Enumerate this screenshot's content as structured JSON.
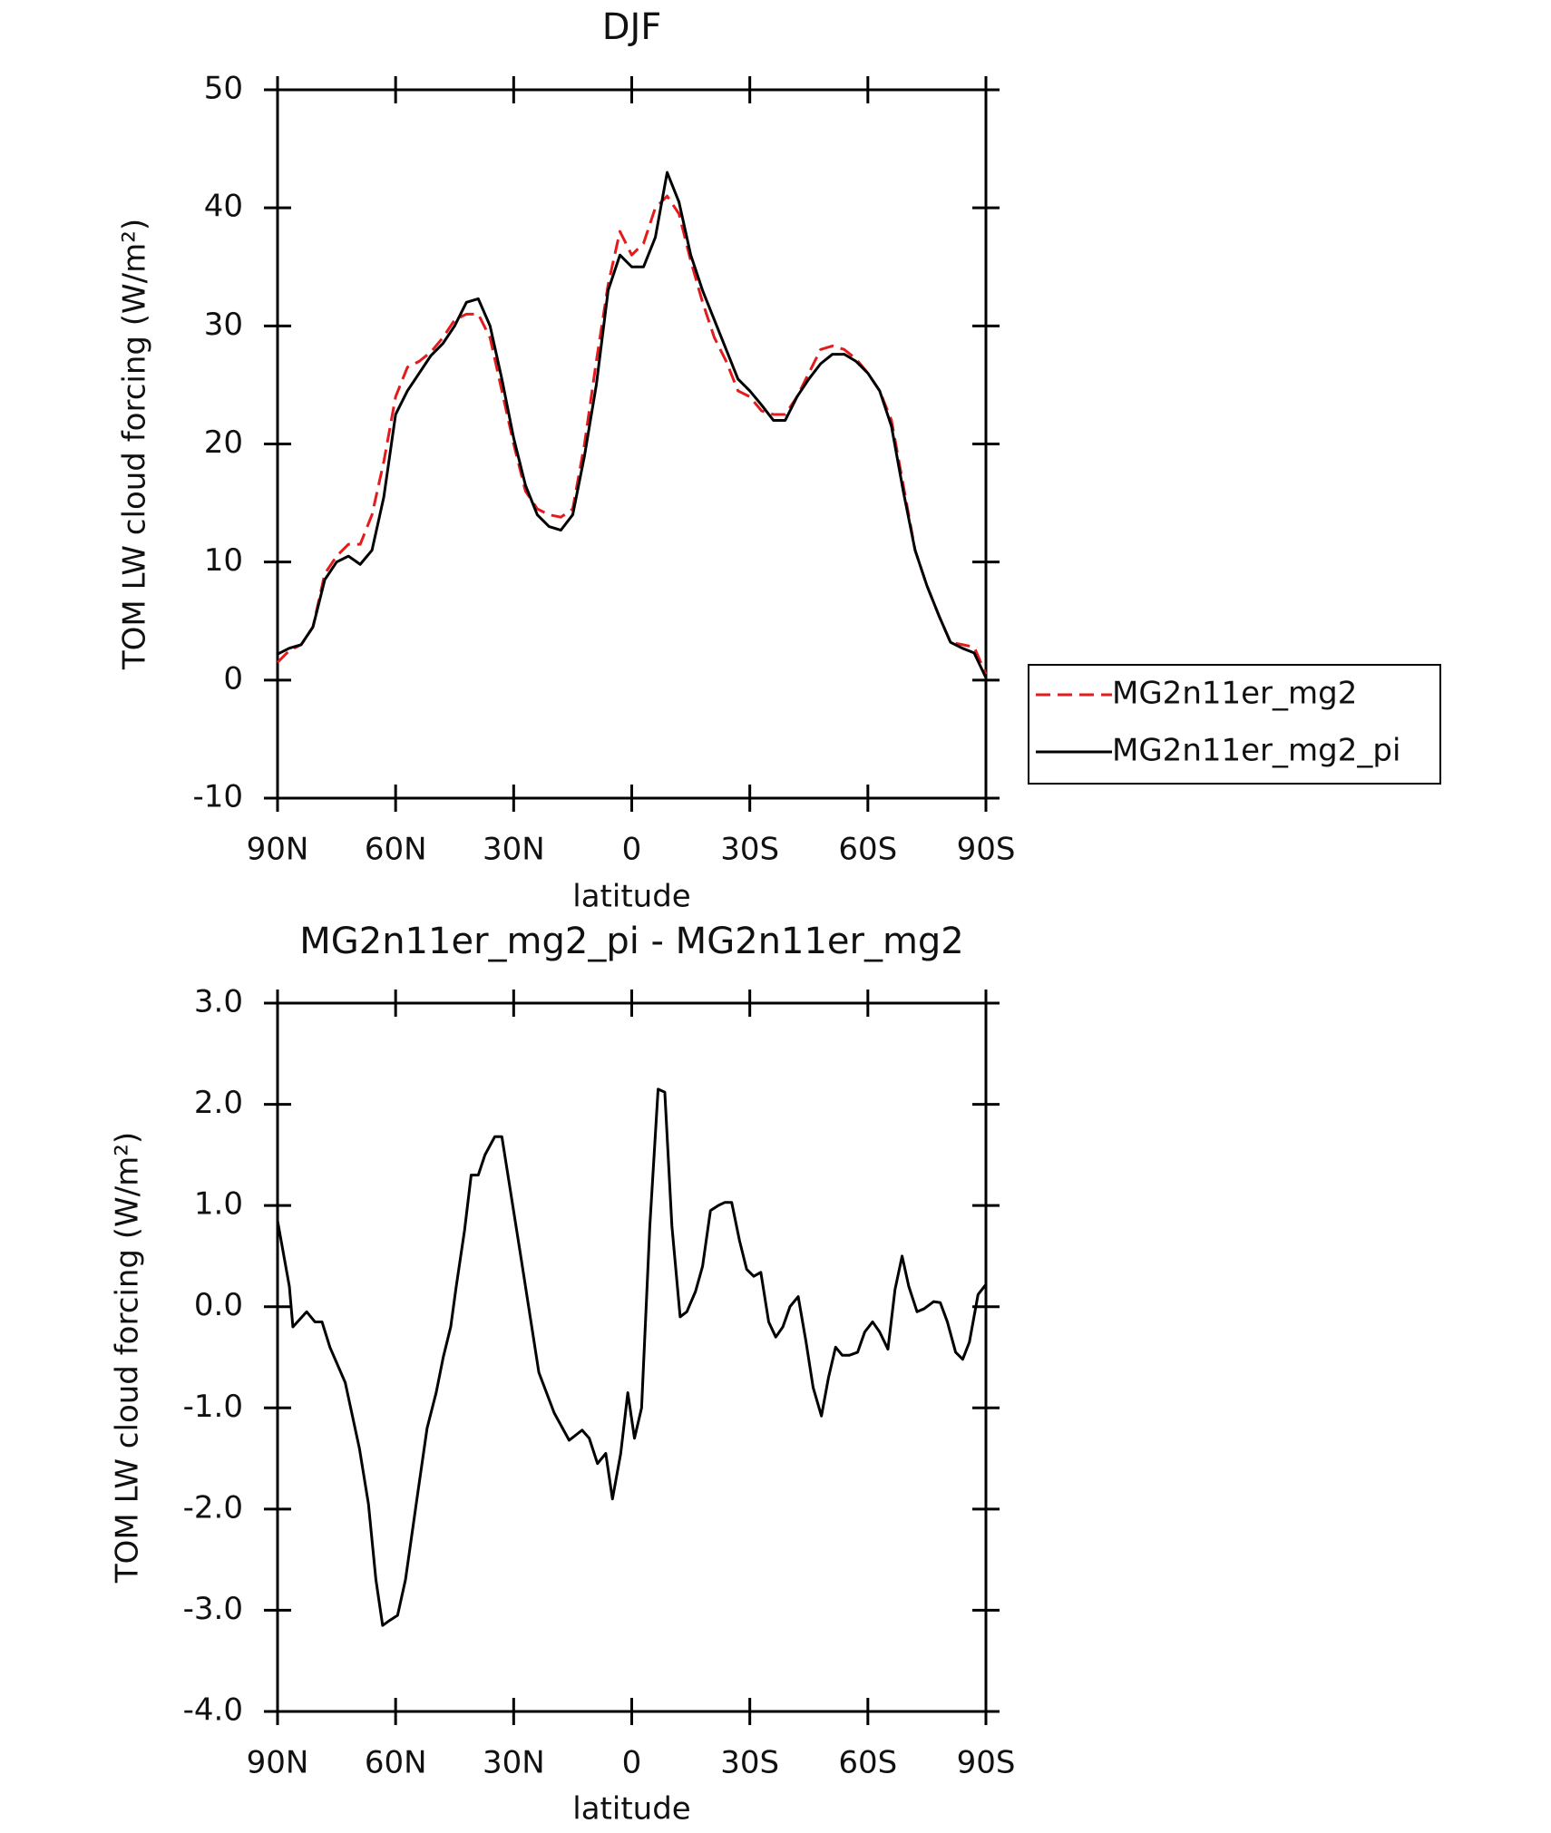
{
  "chart_data": [
    {
      "type": "line",
      "title": "DJF",
      "xlabel": "latitude",
      "ylabel": "TOM LW cloud forcing (W/m²)",
      "xlim": [
        90,
        -90
      ],
      "xticks": [
        {
          "value": 90,
          "label": "90N"
        },
        {
          "value": 60,
          "label": "60N"
        },
        {
          "value": 30,
          "label": "30N"
        },
        0,
        {
          "value": -30,
          "label": "30S"
        },
        {
          "value": -60,
          "label": "60S"
        },
        {
          "value": -90,
          "label": "90S"
        }
      ],
      "ylim": [
        -10,
        50
      ],
      "yticks": [
        -10,
        0,
        10,
        20,
        30,
        40,
        50
      ],
      "legend": "right",
      "x": [
        90,
        87,
        84,
        81,
        78,
        75,
        72,
        69,
        66,
        63,
        60,
        57,
        54,
        51,
        48,
        45,
        42,
        39,
        36,
        33,
        30,
        27,
        24,
        21,
        18,
        15,
        12,
        9,
        6,
        3,
        0,
        -3,
        -6,
        -9,
        -12,
        -15,
        -18,
        -21,
        -24,
        -27,
        -30,
        -33,
        -36,
        -39,
        -42,
        -45,
        -48,
        -51,
        -54,
        -57,
        -60,
        -63,
        -66,
        -69,
        -72,
        -75,
        -78,
        -81,
        -84,
        -87,
        -90
      ],
      "series": [
        {
          "name": "MG2n11er_mg2",
          "color": "#e41a1c",
          "linestyle": "dashed",
          "values": [
            1.5,
            2.5,
            3,
            4.5,
            9,
            10.5,
            11.5,
            11.5,
            14,
            18.5,
            24,
            26.5,
            27,
            27.8,
            29,
            30.5,
            31,
            31,
            29,
            24.5,
            20,
            16,
            14.5,
            14,
            13.8,
            14.5,
            20,
            27,
            33.5,
            38,
            36,
            37,
            40,
            41,
            39.5,
            35.5,
            32,
            29,
            27,
            24.5,
            24,
            22.8,
            22.5,
            22.5,
            24,
            26,
            28,
            28.3,
            28,
            27.2,
            26,
            24.5,
            22,
            16.5,
            11,
            8,
            5.5,
            3.2,
            3,
            2.8,
            0.5
          ]
        },
        {
          "name": "MG2n11er_mg2_pi",
          "color": "#000000",
          "linestyle": "solid",
          "values": [
            2.2,
            2.7,
            3.0,
            4.5,
            8.5,
            10.0,
            10.5,
            9.8,
            11,
            15.5,
            22.5,
            24.5,
            26,
            27.5,
            28.5,
            30,
            32,
            32.3,
            30,
            25.5,
            20.5,
            16.5,
            14,
            13,
            12.7,
            14,
            19,
            25,
            33,
            36,
            35,
            35,
            37.5,
            43,
            40.5,
            36,
            33,
            30.5,
            28,
            25.5,
            24.5,
            23.3,
            22,
            22,
            24,
            25.5,
            26.8,
            27.6,
            27.6,
            27,
            26,
            24.5,
            21.5,
            16,
            11,
            8,
            5.5,
            3.2,
            2.7,
            2.3,
            0.2
          ]
        }
      ]
    },
    {
      "type": "line",
      "title": "MG2n11er_mg2_pi - MG2n11er_mg2",
      "xlabel": "latitude",
      "ylabel": "TOM LW cloud forcing (W/m²)",
      "xlim": [
        90,
        -90
      ],
      "xticks": [
        {
          "value": 90,
          "label": "90N"
        },
        {
          "value": 60,
          "label": "60N"
        },
        {
          "value": 30,
          "label": "30N"
        },
        0,
        {
          "value": -30,
          "label": "30S"
        },
        {
          "value": -60,
          "label": "60S"
        },
        {
          "value": -90,
          "label": "90S"
        }
      ],
      "ylim": [
        -4,
        3
      ],
      "yticks": [
        {
          "value": -4,
          "label": "-4.0"
        },
        {
          "value": -3,
          "label": "-3.0"
        },
        {
          "value": -2,
          "label": "-2.0"
        },
        {
          "value": -1,
          "label": "-1.0"
        },
        {
          "value": 0,
          "label": "0.0"
        },
        {
          "value": 1,
          "label": "1.0"
        },
        {
          "value": 2,
          "label": "2.0"
        },
        {
          "value": 3,
          "label": "3.0"
        }
      ],
      "x": [
        90,
        87,
        86.1,
        82.6,
        80.5,
        78.7,
        76.7,
        72.8,
        69.2,
        66.9,
        65,
        63.3,
        61.5,
        59.5,
        57.5,
        54.4,
        52,
        49.7,
        47.9,
        46,
        44.6,
        42.5,
        40.8,
        39,
        37.3,
        34.8,
        33,
        28,
        23.6,
        19.7,
        15.9,
        12.6,
        10.8,
        8.7,
        6.6,
        4.9,
        2.8,
        1,
        -0.7,
        -2.5,
        -4.6,
        -6.7,
        -8.4,
        -10.2,
        -12.3,
        -14,
        -16.2,
        -18,
        -20,
        -22,
        -23.6,
        -25.4,
        -27.4,
        -29.2,
        -31,
        -32.8,
        -34.8,
        -36.6,
        -38.4,
        -40.2,
        -42.3,
        -44.3,
        -46.1,
        -48.2,
        -50,
        -51.8,
        -53.5,
        -55.3,
        -57.4,
        -59.2,
        -61.2,
        -63,
        -65.1,
        -66.9,
        -68.7,
        -70.4,
        -72.5,
        -74.3,
        -76.7,
        -78.4,
        -80.2,
        -82.3,
        -84.1,
        -85.8,
        -88,
        -90
      ],
      "series": [
        {
          "color": "#000000",
          "linestyle": "solid",
          "values": [
            0.85,
            0.2,
            -0.2,
            -0.05,
            -0.15,
            -0.15,
            -0.4,
            -0.75,
            -1.4,
            -1.95,
            -2.7,
            -3.15,
            -3.1,
            -3.05,
            -2.7,
            -1.85,
            -1.2,
            -0.85,
            -0.5,
            -0.2,
            0.2,
            0.75,
            1.3,
            1.3,
            1.5,
            1.68,
            1.68,
            0.45,
            -0.65,
            -1.05,
            -1.32,
            -1.22,
            -1.3,
            -1.55,
            -1.45,
            -1.9,
            -1.45,
            -0.85,
            -1.3,
            -1.0,
            0.8,
            2.15,
            2.12,
            0.8,
            -0.1,
            -0.05,
            0.15,
            0.4,
            0.95,
            1.0,
            1.03,
            1.03,
            0.65,
            0.37,
            0.3,
            0.34,
            -0.15,
            -0.3,
            -0.2,
            0.0,
            0.1,
            -0.35,
            -0.8,
            -1.08,
            -0.7,
            -0.4,
            -0.48,
            -0.48,
            -0.45,
            -0.25,
            -0.15,
            -0.25,
            -0.42,
            0.17,
            0.5,
            0.2,
            -0.05,
            -0.02,
            0.05,
            0.04,
            -0.15,
            -0.45,
            -0.52,
            -0.35,
            0.12,
            0.22
          ]
        }
      ]
    }
  ]
}
